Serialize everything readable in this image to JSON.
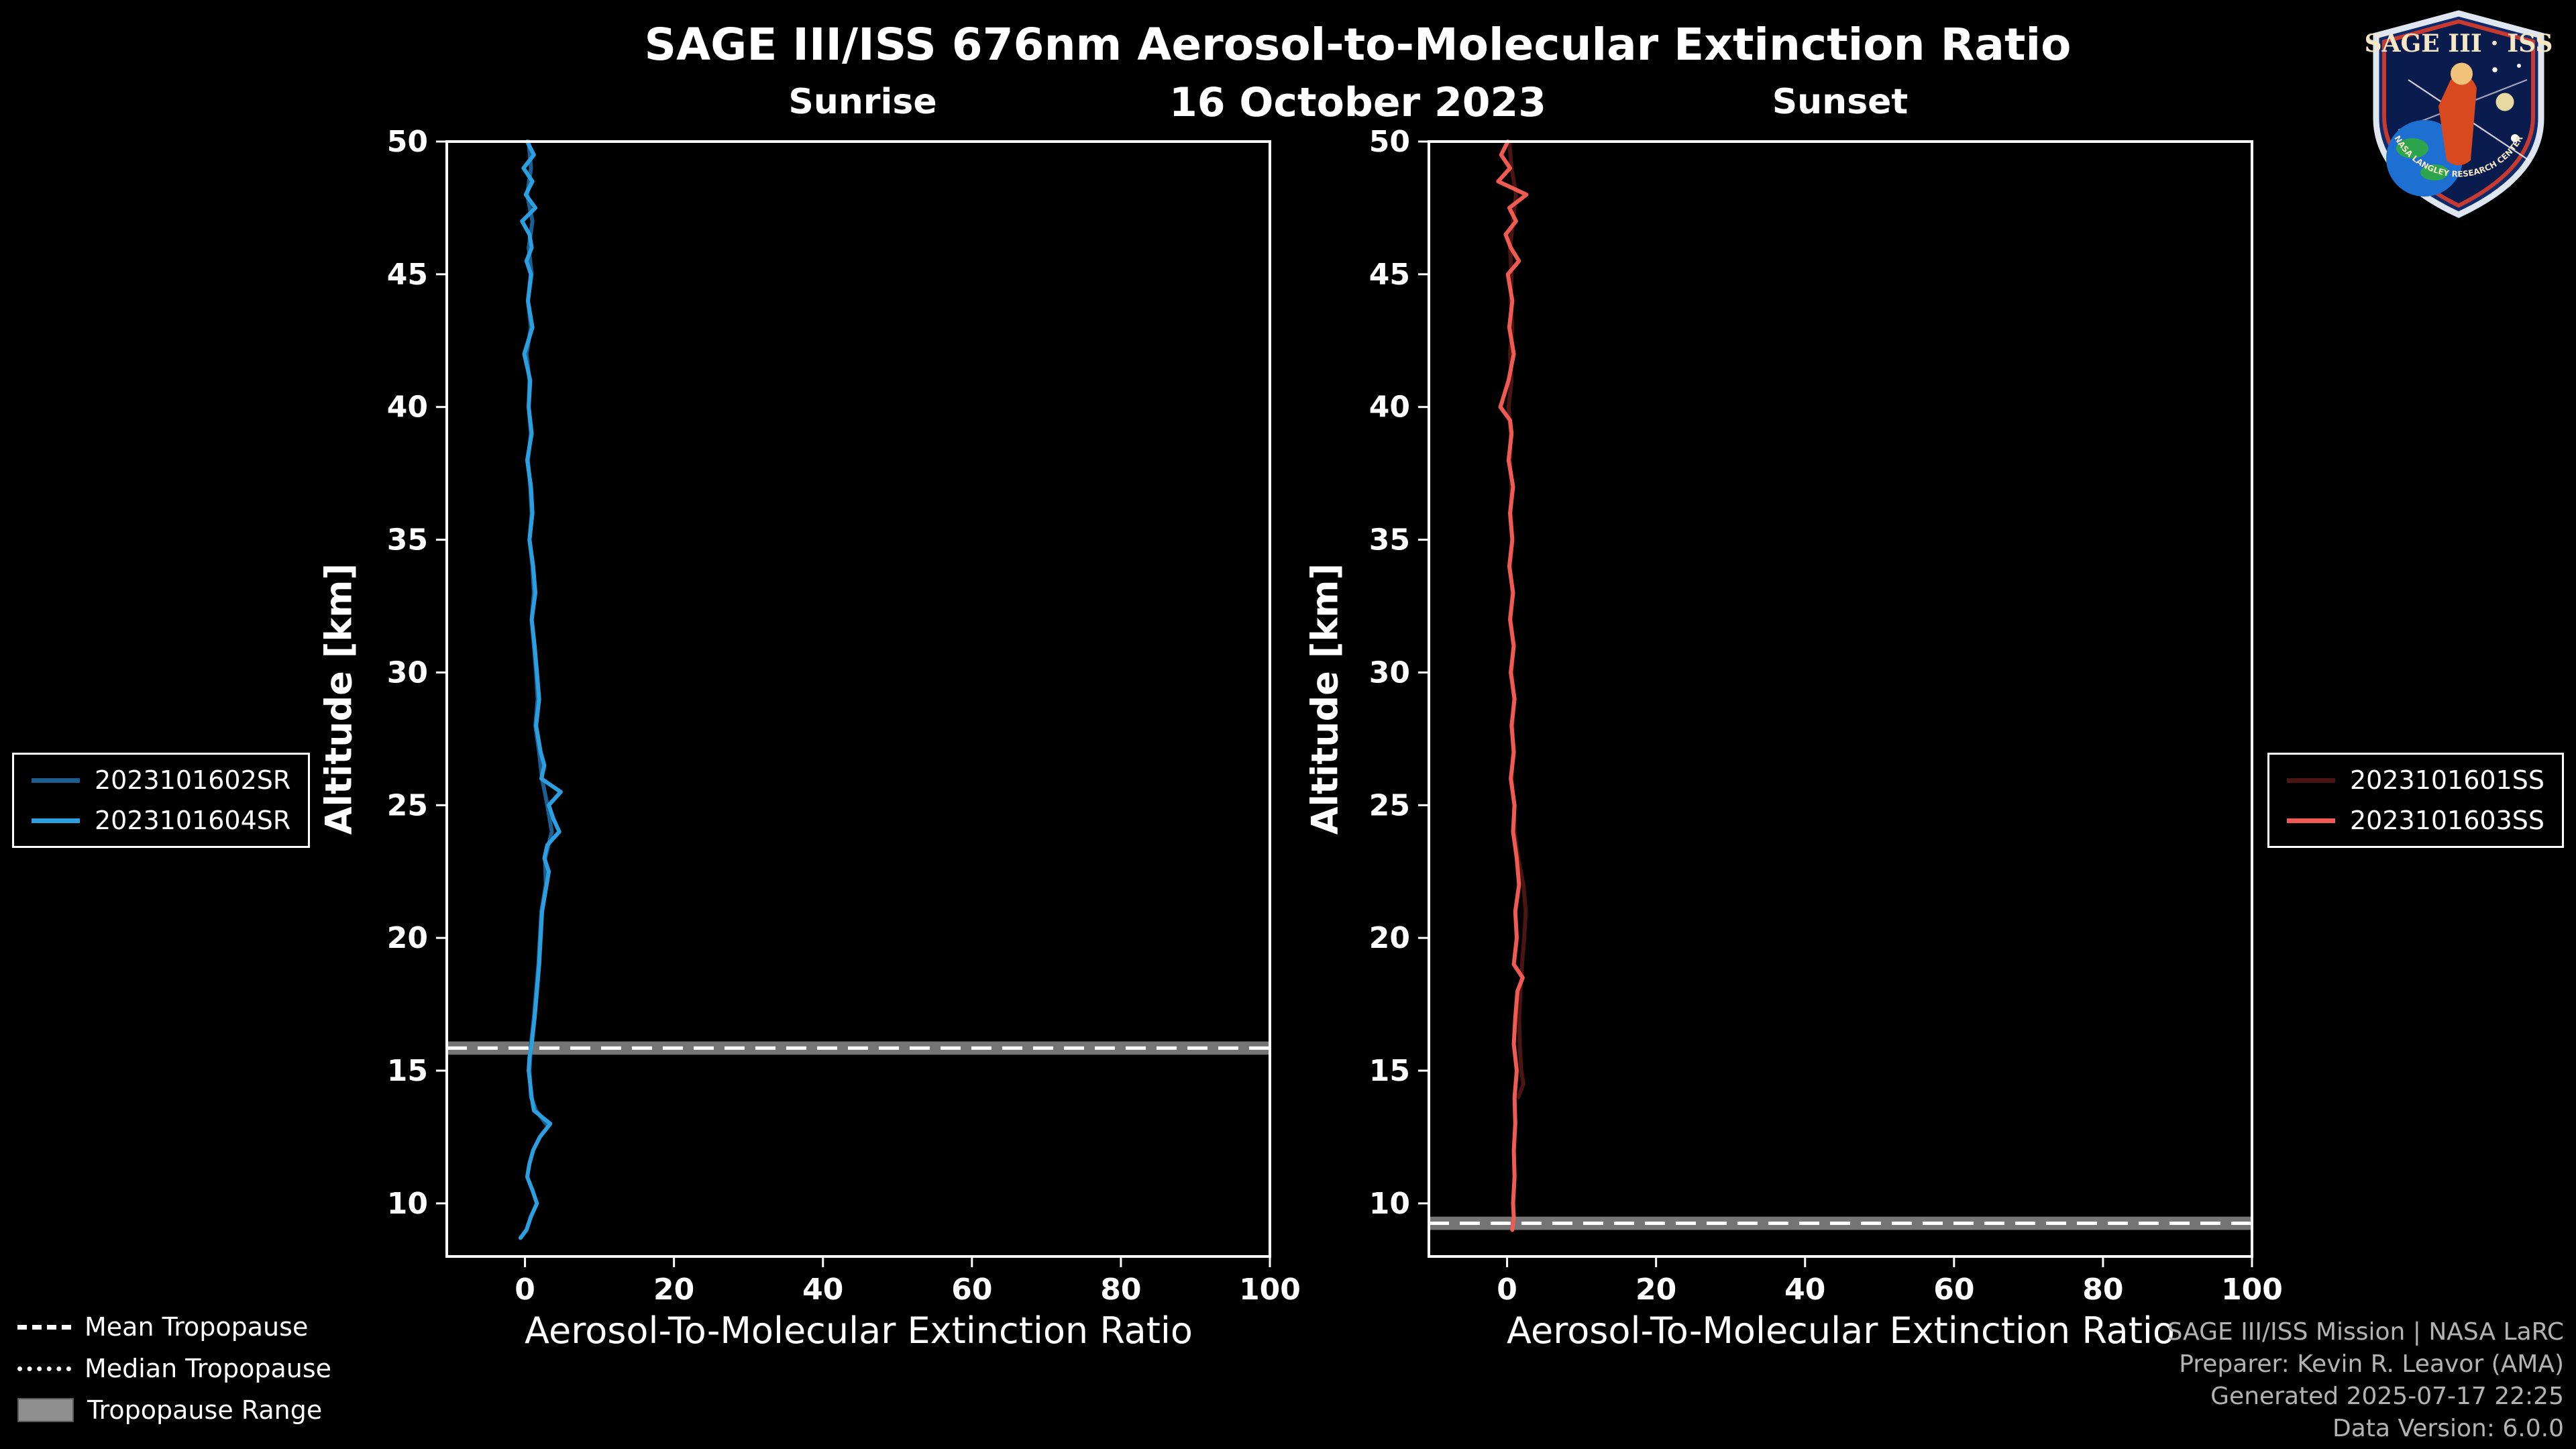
{
  "header": {
    "title": "SAGE III/ISS 676nm Aerosol-to-Molecular Extinction Ratio",
    "date": "16 October 2023"
  },
  "logo": {
    "text": "SAGE III · ISS",
    "ring_text": "NASA LANGLEY RESEARCH CENTER"
  },
  "chart_data": {
    "type": "line",
    "title": "SAGE III/ISS 676nm Aerosol-to-Molecular Extinction Ratio",
    "subtitle": "16 October 2023",
    "xlabel": "Aerosol-To-Molecular Extinction Ratio",
    "ylabel": "Altitude [km]",
    "xlim": [
      -10.5,
      100
    ],
    "ylim": [
      8,
      50
    ],
    "xticks": [
      0,
      20,
      40,
      60,
      80,
      100
    ],
    "yticks": [
      10,
      15,
      20,
      25,
      30,
      35,
      40,
      45,
      50
    ],
    "grid": false,
    "background": "#000000",
    "panels": [
      {
        "title": "Sunrise",
        "tropopause_mean_km": 15.85,
        "tropopause_range_km": [
          15.6,
          16.1
        ],
        "series": [
          {
            "name": "2023101602SR",
            "color": "#1b5e8f",
            "points": [
              [
                50,
                0.5
              ],
              [
                49,
                0.8
              ],
              [
                48,
                0.3
              ],
              [
                47,
                1.0
              ],
              [
                46,
                0.5
              ],
              [
                45,
                0.9
              ],
              [
                44,
                0.4
              ],
              [
                43,
                0.8
              ],
              [
                42,
                0.2
              ],
              [
                41,
                0.6
              ],
              [
                40,
                0.5
              ],
              [
                39,
                0.8
              ],
              [
                38,
                0.4
              ],
              [
                37,
                0.7
              ],
              [
                36,
                0.9
              ],
              [
                35,
                0.6
              ],
              [
                34,
                1.0
              ],
              [
                33,
                1.2
              ],
              [
                32,
                0.9
              ],
              [
                31,
                1.2
              ],
              [
                30,
                1.5
              ],
              [
                29,
                1.7
              ],
              [
                28,
                1.4
              ],
              [
                27,
                1.9
              ],
              [
                26,
                2.3
              ],
              [
                25,
                3.0
              ],
              [
                24,
                3.6
              ],
              [
                23,
                2.7
              ],
              [
                22,
                2.8
              ],
              [
                21,
                2.2
              ],
              [
                20,
                2.0
              ],
              [
                19,
                1.8
              ],
              [
                18,
                1.5
              ],
              [
                17,
                1.2
              ],
              [
                16,
                0.8
              ],
              [
                15,
                0.6
              ],
              [
                14,
                0.8
              ],
              [
                13.5,
                1.5
              ],
              [
                13,
                2.8
              ]
            ]
          },
          {
            "name": "2023101604SR",
            "color": "#2b9fe0",
            "points": [
              [
                50,
                0.3
              ],
              [
                49.5,
                1.2
              ],
              [
                49,
                -0.2
              ],
              [
                48.5,
                1.0
              ],
              [
                48,
                0.1
              ],
              [
                47.5,
                1.4
              ],
              [
                47,
                -0.4
              ],
              [
                46.5,
                0.6
              ],
              [
                46,
                0.9
              ],
              [
                45.5,
                0.2
              ],
              [
                45,
                0.8
              ],
              [
                44,
                0.4
              ],
              [
                43,
                1.0
              ],
              [
                42,
                -0.1
              ],
              [
                41,
                0.7
              ],
              [
                40,
                0.5
              ],
              [
                39,
                0.9
              ],
              [
                38,
                0.3
              ],
              [
                37,
                0.8
              ],
              [
                36,
                1.0
              ],
              [
                35,
                0.6
              ],
              [
                34,
                1.1
              ],
              [
                33,
                1.4
              ],
              [
                32,
                0.9
              ],
              [
                31,
                1.3
              ],
              [
                30,
                1.6
              ],
              [
                29,
                1.9
              ],
              [
                28,
                1.5
              ],
              [
                27,
                2.1
              ],
              [
                26.5,
                2.6
              ],
              [
                26,
                2.2
              ],
              [
                25.5,
                4.8
              ],
              [
                25,
                3.2
              ],
              [
                24.5,
                3.8
              ],
              [
                24,
                4.6
              ],
              [
                23.5,
                3.0
              ],
              [
                23,
                2.6
              ],
              [
                22.5,
                3.2
              ],
              [
                22,
                2.9
              ],
              [
                21,
                2.3
              ],
              [
                20,
                2.1
              ],
              [
                19,
                1.9
              ],
              [
                18,
                1.6
              ],
              [
                17,
                1.3
              ],
              [
                16,
                0.9
              ],
              [
                15.5,
                0.6
              ],
              [
                15,
                0.5
              ],
              [
                14.5,
                0.7
              ],
              [
                14,
                0.9
              ],
              [
                13.5,
                1.2
              ],
              [
                13,
                3.4
              ],
              [
                12.5,
                2.0
              ],
              [
                12,
                1.1
              ],
              [
                11.5,
                0.6
              ],
              [
                11,
                0.3
              ],
              [
                10.5,
                1.0
              ],
              [
                10,
                1.6
              ],
              [
                9.5,
                0.8
              ],
              [
                9,
                0.2
              ],
              [
                8.7,
                -0.6
              ]
            ]
          }
        ]
      },
      {
        "title": "Sunset",
        "tropopause_mean_km": 9.25,
        "tropopause_range_km": [
          9.0,
          9.5
        ],
        "series": [
          {
            "name": "2023101601SS",
            "color": "#4a1512",
            "points": [
              [
                50,
                0.3
              ],
              [
                49,
                0.6
              ],
              [
                48,
                1.2
              ],
              [
                47,
                0.8
              ],
              [
                46,
                0.4
              ],
              [
                45,
                0.6
              ],
              [
                44,
                0.5
              ],
              [
                43,
                0.7
              ],
              [
                42,
                0.4
              ],
              [
                41,
                0.6
              ],
              [
                40,
                0.2
              ],
              [
                39,
                0.5
              ],
              [
                38,
                0.4
              ],
              [
                37,
                0.6
              ],
              [
                36,
                0.5
              ],
              [
                35,
                0.7
              ],
              [
                34,
                0.4
              ],
              [
                33,
                0.7
              ],
              [
                32,
                0.5
              ],
              [
                31,
                0.8
              ],
              [
                30,
                0.6
              ],
              [
                29,
                0.9
              ],
              [
                28,
                0.7
              ],
              [
                27,
                0.8
              ],
              [
                26,
                0.6
              ],
              [
                25,
                0.9
              ],
              [
                24,
                1.0
              ],
              [
                23,
                1.5
              ],
              [
                22,
                2.2
              ],
              [
                21,
                2.5
              ],
              [
                20,
                2.3
              ],
              [
                19,
                2.0
              ],
              [
                18,
                1.8
              ],
              [
                17,
                1.6
              ],
              [
                16,
                1.7
              ],
              [
                15,
                1.9
              ],
              [
                14.5,
                2.2
              ],
              [
                14,
                1.5
              ]
            ]
          },
          {
            "name": "2023101603SS",
            "color": "#ef5a52",
            "points": [
              [
                50,
                0.1
              ],
              [
                49.5,
                -0.8
              ],
              [
                49,
                0.4
              ],
              [
                48.5,
                -1.2
              ],
              [
                48,
                2.6
              ],
              [
                47.5,
                0.3
              ],
              [
                47,
                1.2
              ],
              [
                46.5,
                -0.2
              ],
              [
                46,
                0.5
              ],
              [
                45.5,
                1.6
              ],
              [
                45,
                0.1
              ],
              [
                44,
                0.7
              ],
              [
                43,
                0.3
              ],
              [
                42,
                0.9
              ],
              [
                41,
                0.2
              ],
              [
                40,
                -0.9
              ],
              [
                39.5,
                0.4
              ],
              [
                39,
                0.6
              ],
              [
                38,
                0.2
              ],
              [
                37,
                0.8
              ],
              [
                36,
                0.4
              ],
              [
                35,
                0.7
              ],
              [
                34,
                0.3
              ],
              [
                33,
                0.8
              ],
              [
                32,
                0.4
              ],
              [
                31,
                0.9
              ],
              [
                30,
                0.5
              ],
              [
                29,
                1.0
              ],
              [
                28,
                0.6
              ],
              [
                27,
                0.9
              ],
              [
                26,
                0.5
              ],
              [
                25,
                1.0
              ],
              [
                24,
                0.8
              ],
              [
                23,
                1.3
              ],
              [
                22,
                1.6
              ],
              [
                21,
                1.1
              ],
              [
                20,
                1.3
              ],
              [
                19,
                0.9
              ],
              [
                18.5,
                2.1
              ],
              [
                18,
                1.4
              ],
              [
                17,
                1.1
              ],
              [
                16,
                0.9
              ],
              [
                15,
                1.3
              ],
              [
                14,
                1.0
              ],
              [
                13,
                1.1
              ],
              [
                12,
                0.9
              ],
              [
                11,
                1.0
              ],
              [
                10,
                0.8
              ],
              [
                9.5,
                0.9
              ],
              [
                9,
                0.7
              ]
            ]
          }
        ]
      }
    ]
  },
  "legend_bottom": {
    "mean": "Mean Tropopause",
    "median": "Median Tropopause",
    "range": "Tropopause Range"
  },
  "credits": {
    "lines": [
      "SAGE III/ISS Mission | NASA LaRC",
      "Preparer: Kevin R. Leavor (AMA)",
      "Generated 2025-07-17 22:25",
      "Data Version: 6.0.0"
    ]
  }
}
